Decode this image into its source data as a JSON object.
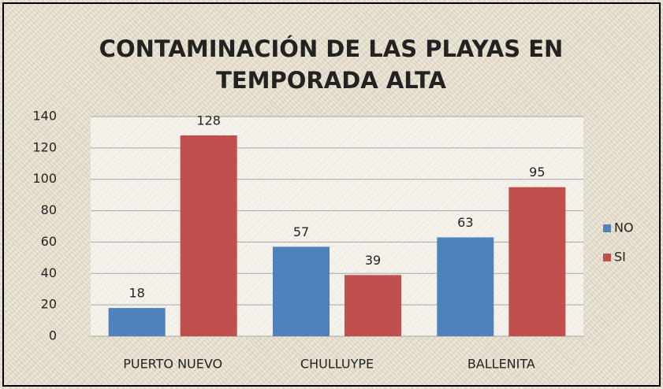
{
  "chart_data": {
    "type": "bar",
    "title": "CONTAMINACIÓN DE LAS PLAYAS EN TEMPORADA ALTA",
    "categories": [
      "PUERTO NUEVO",
      "CHULLUYPE",
      "BALLENITA"
    ],
    "series": [
      {
        "name": "NO",
        "color": "#4f81bd",
        "values": [
          18,
          57,
          63
        ]
      },
      {
        "name": "SI",
        "color": "#c0504d",
        "values": [
          128,
          39,
          95
        ]
      }
    ],
    "ylim": [
      0,
      140
    ],
    "yticks": [
      0,
      20,
      40,
      60,
      80,
      100,
      120,
      140
    ],
    "grid": true,
    "legend": "right"
  }
}
